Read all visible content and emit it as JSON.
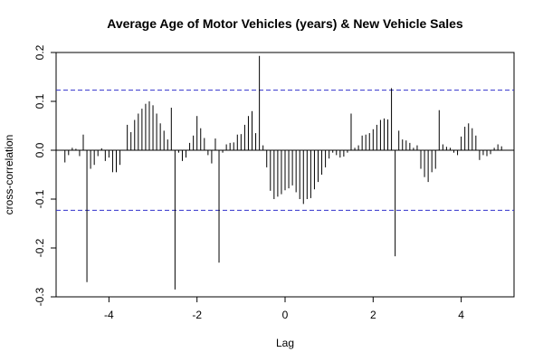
{
  "chart_data": {
    "type": "bar",
    "title": "Average Age of Motor Vehicles (years) & New Vehicle Sales",
    "xlabel": "Lag",
    "ylabel": "cross-correlation",
    "xlim": [
      -5.2,
      5.2
    ],
    "ylim": [
      -0.3,
      0.2
    ],
    "xticks": [
      -4,
      -2,
      0,
      2,
      4
    ],
    "yticks": [
      -0.3,
      -0.2,
      -0.1,
      0.0,
      0.1,
      0.2
    ],
    "ytick_labels": [
      "-0.3",
      "-0.2",
      "-0.1",
      "0.0",
      "0.1",
      "0.2"
    ],
    "confidence_bounds": [
      0.123,
      -0.123
    ],
    "colors": {
      "bars": "#000000",
      "bounds": "#3333cc"
    },
    "lags": [
      -5.0,
      -4.9167,
      -4.8333,
      -4.75,
      -4.6667,
      -4.5833,
      -4.5,
      -4.4167,
      -4.3333,
      -4.25,
      -4.1667,
      -4.0833,
      -4.0,
      -3.9167,
      -3.8333,
      -3.75,
      -3.6667,
      -3.5833,
      -3.5,
      -3.4167,
      -3.3333,
      -3.25,
      -3.1667,
      -3.0833,
      -3.0,
      -2.9167,
      -2.8333,
      -2.75,
      -2.6667,
      -2.5833,
      -2.5,
      -2.4167,
      -2.3333,
      -2.25,
      -2.1667,
      -2.0833,
      -2.0,
      -1.9167,
      -1.8333,
      -1.75,
      -1.6667,
      -1.5833,
      -1.5,
      -1.4167,
      -1.3333,
      -1.25,
      -1.1667,
      -1.0833,
      -1.0,
      -0.9167,
      -0.8333,
      -0.75,
      -0.6667,
      -0.5833,
      -0.5,
      -0.4167,
      -0.3333,
      -0.25,
      -0.1667,
      -0.0833,
      0.0,
      0.0833,
      0.1667,
      0.25,
      0.3333,
      0.4167,
      0.5,
      0.5833,
      0.6667,
      0.75,
      0.8333,
      0.9167,
      1.0,
      1.0833,
      1.1667,
      1.25,
      1.3333,
      1.4167,
      1.5,
      1.5833,
      1.6667,
      1.75,
      1.8333,
      1.9167,
      2.0,
      2.0833,
      2.1667,
      2.25,
      2.3333,
      2.4167,
      2.5,
      2.5833,
      2.6667,
      2.75,
      2.8333,
      2.9167,
      3.0,
      3.0833,
      3.1667,
      3.25,
      3.3333,
      3.4167,
      3.5,
      3.5833,
      3.6667,
      3.75,
      3.8333,
      3.9167,
      4.0,
      4.0833,
      4.1667,
      4.25,
      4.3333,
      4.4167,
      4.5,
      4.5833,
      4.6667,
      4.75,
      4.8333,
      4.9167,
      5.0
    ],
    "values": [
      -0.025,
      -0.01,
      0.005,
      0.003,
      -0.012,
      0.032,
      -0.27,
      -0.038,
      -0.03,
      -0.012,
      0.004,
      -0.022,
      -0.015,
      -0.045,
      -0.045,
      -0.03,
      0.0,
      0.052,
      0.037,
      0.062,
      0.075,
      0.085,
      0.095,
      0.1,
      0.092,
      0.075,
      0.055,
      0.04,
      0.022,
      0.087,
      -0.285,
      -0.005,
      -0.022,
      -0.015,
      0.015,
      0.03,
      0.07,
      0.045,
      0.025,
      -0.01,
      -0.027,
      0.024,
      -0.23,
      -0.005,
      0.012,
      0.015,
      0.016,
      0.032,
      0.033,
      0.052,
      0.07,
      0.08,
      0.035,
      0.193,
      0.01,
      -0.035,
      -0.083,
      -0.1,
      -0.095,
      -0.09,
      -0.082,
      -0.078,
      -0.072,
      -0.086,
      -0.1,
      -0.11,
      -0.1,
      -0.098,
      -0.08,
      -0.065,
      -0.05,
      -0.035,
      -0.017,
      -0.005,
      -0.01,
      -0.015,
      -0.013,
      -0.005,
      0.075,
      0.005,
      0.01,
      0.03,
      0.032,
      0.035,
      0.043,
      0.052,
      0.062,
      0.065,
      0.063,
      0.127,
      -0.217,
      0.04,
      0.022,
      0.02,
      0.015,
      0.005,
      0.01,
      -0.038,
      -0.055,
      -0.065,
      -0.045,
      -0.038,
      0.082,
      0.012,
      0.007,
      0.005,
      -0.005,
      -0.01,
      0.028,
      0.048,
      0.055,
      0.045,
      0.03,
      -0.02,
      -0.01,
      -0.012,
      -0.008,
      0.005,
      0.012,
      0.008,
      0.0
    ]
  }
}
